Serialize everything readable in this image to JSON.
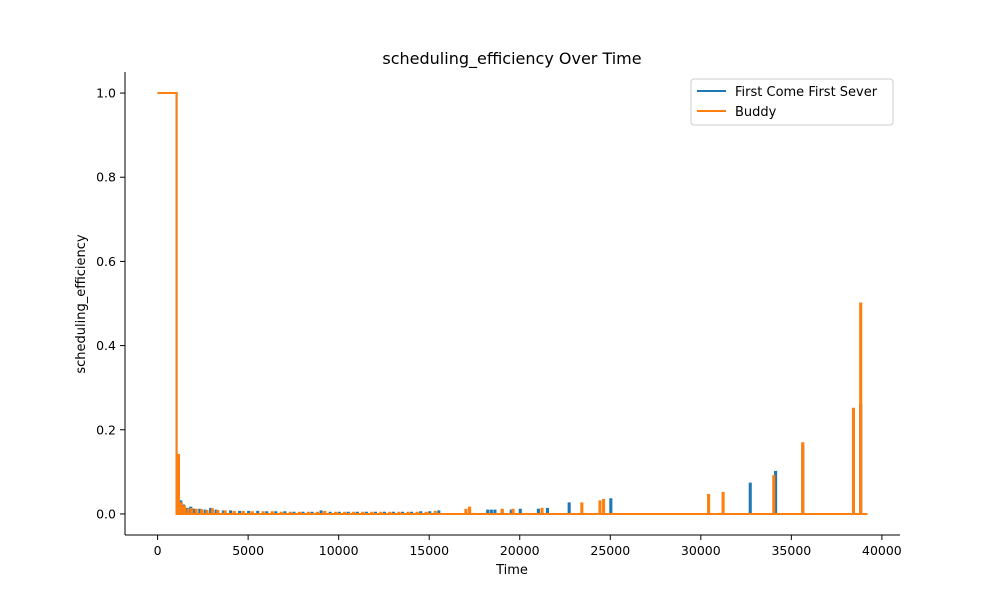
{
  "chart_data": {
    "type": "line",
    "title": "scheduling_efficiency Over Time",
    "xlabel": "Time",
    "ylabel": "scheduling_efficiency",
    "xlim": [
      -1800,
      41000
    ],
    "ylim": [
      -0.05,
      1.05
    ],
    "xticks": [
      0,
      5000,
      10000,
      15000,
      20000,
      25000,
      30000,
      35000,
      40000
    ],
    "xtick_labels": [
      "0",
      "5000",
      "10000",
      "15000",
      "20000",
      "25000",
      "30000",
      "35000",
      "40000"
    ],
    "yticks": [
      0.0,
      0.2,
      0.4,
      0.6,
      0.8,
      1.0
    ],
    "ytick_labels": [
      "0.0",
      "0.2",
      "0.4",
      "0.6",
      "0.8",
      "1.0"
    ],
    "grid": false,
    "legend_position": "top-right",
    "series": [
      {
        "name": "First Come First Sever",
        "color": "#1f77b4",
        "x_end": 39200,
        "points": [
          [
            0,
            1.0
          ],
          [
            1050,
            1.0
          ],
          [
            1050,
            0.0
          ],
          [
            1150,
            0.0
          ],
          [
            1150,
            0.14
          ],
          [
            1180,
            0.14
          ],
          [
            1180,
            0.0
          ]
        ],
        "spikes": [
          [
            1250,
            0.03
          ],
          [
            1400,
            0.02
          ],
          [
            1600,
            0.012
          ],
          [
            1800,
            0.015
          ],
          [
            2000,
            0.01
          ],
          [
            2300,
            0.01
          ],
          [
            2600,
            0.008
          ],
          [
            2900,
            0.012
          ],
          [
            3200,
            0.008
          ],
          [
            3600,
            0.006
          ],
          [
            4000,
            0.006
          ],
          [
            4500,
            0.005
          ],
          [
            5000,
            0.005
          ],
          [
            5500,
            0.005
          ],
          [
            6000,
            0.004
          ],
          [
            6500,
            0.004
          ],
          [
            7000,
            0.004
          ],
          [
            7500,
            0.003
          ],
          [
            8000,
            0.003
          ],
          [
            8500,
            0.003
          ],
          [
            9000,
            0.006
          ],
          [
            9500,
            0.003
          ],
          [
            10000,
            0.003
          ],
          [
            10500,
            0.003
          ],
          [
            11000,
            0.003
          ],
          [
            11500,
            0.003
          ],
          [
            12000,
            0.003
          ],
          [
            12500,
            0.003
          ],
          [
            13000,
            0.003
          ],
          [
            13500,
            0.003
          ],
          [
            14000,
            0.003
          ],
          [
            14500,
            0.004
          ],
          [
            15000,
            0.004
          ],
          [
            15500,
            0.006
          ],
          [
            18200,
            0.008
          ],
          [
            18400,
            0.008
          ],
          [
            18600,
            0.008
          ],
          [
            19000,
            0.008
          ],
          [
            19500,
            0.008
          ],
          [
            20000,
            0.01
          ],
          [
            21000,
            0.01
          ],
          [
            21500,
            0.012
          ],
          [
            22700,
            0.025
          ],
          [
            25000,
            0.035
          ],
          [
            32700,
            0.072
          ],
          [
            34100,
            0.1
          ],
          [
            35600,
            0.16
          ],
          [
            38800,
            0.26
          ]
        ]
      },
      {
        "name": "Buddy",
        "color": "#ff7f0e",
        "x_end": 39200,
        "points": [
          [
            0,
            1.0
          ],
          [
            1050,
            1.0
          ],
          [
            1050,
            0.0
          ],
          [
            1150,
            0.0
          ],
          [
            1150,
            0.14
          ],
          [
            1180,
            0.14
          ],
          [
            1180,
            0.0
          ]
        ],
        "spikes": [
          [
            1280,
            0.025
          ],
          [
            1450,
            0.018
          ],
          [
            1650,
            0.01
          ],
          [
            1850,
            0.012
          ],
          [
            2100,
            0.01
          ],
          [
            2400,
            0.009
          ],
          [
            2700,
            0.007
          ],
          [
            3000,
            0.011
          ],
          [
            3300,
            0.007
          ],
          [
            3700,
            0.006
          ],
          [
            4200,
            0.005
          ],
          [
            4700,
            0.005
          ],
          [
            5200,
            0.004
          ],
          [
            5800,
            0.004
          ],
          [
            6300,
            0.004
          ],
          [
            6800,
            0.003
          ],
          [
            7300,
            0.003
          ],
          [
            7800,
            0.003
          ],
          [
            8300,
            0.003
          ],
          [
            8800,
            0.003
          ],
          [
            9200,
            0.005
          ],
          [
            9800,
            0.003
          ],
          [
            10300,
            0.003
          ],
          [
            10800,
            0.003
          ],
          [
            11300,
            0.003
          ],
          [
            11800,
            0.003
          ],
          [
            12300,
            0.003
          ],
          [
            12800,
            0.003
          ],
          [
            13300,
            0.003
          ],
          [
            13800,
            0.003
          ],
          [
            14300,
            0.003
          ],
          [
            14800,
            0.003
          ],
          [
            15300,
            0.005
          ],
          [
            17000,
            0.01
          ],
          [
            17200,
            0.015
          ],
          [
            19000,
            0.01
          ],
          [
            19600,
            0.01
          ],
          [
            21200,
            0.012
          ],
          [
            23400,
            0.025
          ],
          [
            24400,
            0.03
          ],
          [
            24600,
            0.033
          ],
          [
            30400,
            0.045
          ],
          [
            31200,
            0.05
          ],
          [
            34000,
            0.09
          ],
          [
            35600,
            0.168
          ],
          [
            38400,
            0.25
          ],
          [
            38800,
            0.5
          ]
        ]
      }
    ]
  }
}
